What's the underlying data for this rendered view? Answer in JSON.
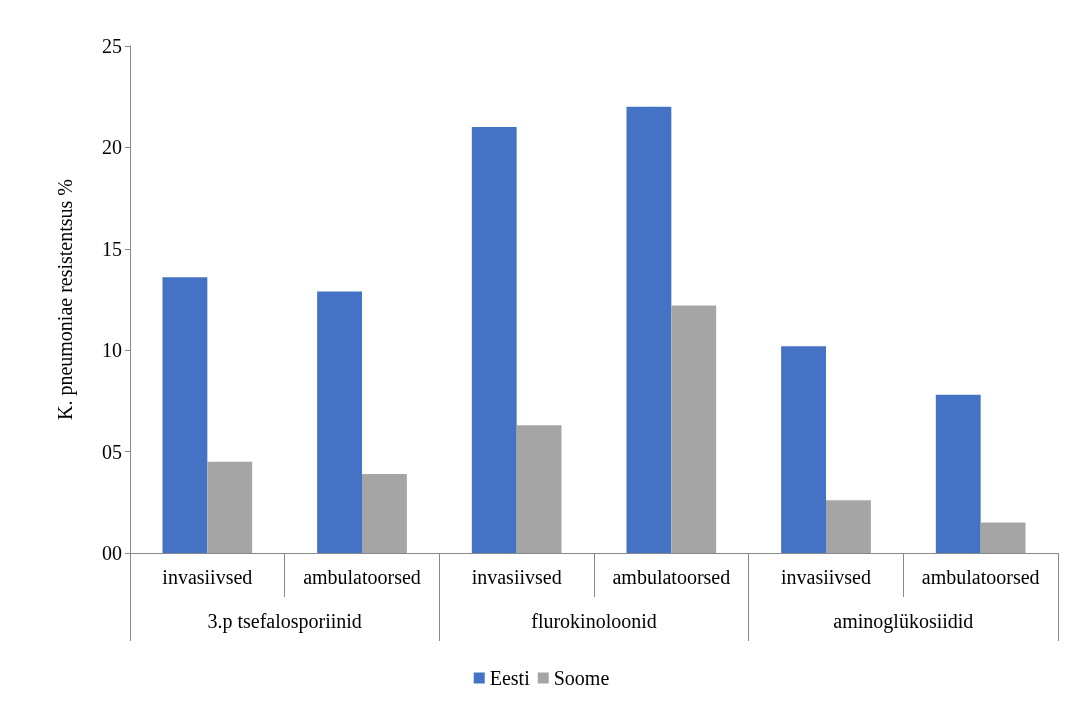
{
  "chart_data": {
    "type": "bar",
    "ylabel": "K. pneumoniae resistentsus %",
    "categories": [
      "invasiivsed",
      "ambulatoorsed",
      "invasiivsed",
      "ambulatoorsed",
      "invasiivsed",
      "ambulatoorsed"
    ],
    "annotations": [
      "3.p tsefalosporiinid",
      "flurokinoloonid",
      "aminoglükosiidid"
    ],
    "series": [
      {
        "name": "Eesti",
        "color": "#4472c4",
        "values": [
          13.6,
          12.9,
          21.0,
          22.0,
          10.2,
          7.8
        ]
      },
      {
        "name": "Soome",
        "color": "#a5a5a5",
        "values": [
          4.5,
          3.9,
          6.3,
          12.2,
          2.6,
          1.5
        ]
      }
    ],
    "ylim": [
      0,
      25
    ],
    "yticks": [
      {
        "value": 0,
        "label": "00"
      },
      {
        "value": 5,
        "label": "05"
      },
      10,
      15,
      20,
      25
    ],
    "grid": false,
    "legend": "bottom"
  }
}
